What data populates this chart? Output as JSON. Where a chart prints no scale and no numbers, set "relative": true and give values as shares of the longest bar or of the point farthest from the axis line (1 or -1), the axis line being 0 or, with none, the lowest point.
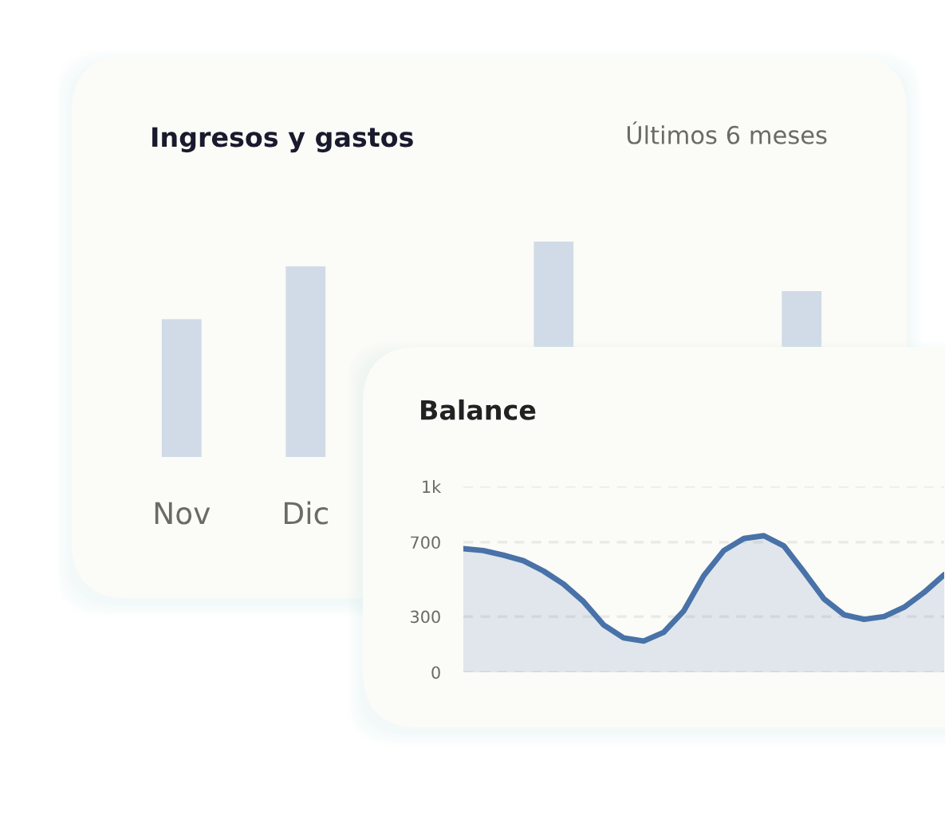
{
  "chart_data": [
    {
      "type": "bar",
      "title": "Ingresos y gastos",
      "subtitle": "Últimos 6 meses",
      "relative": true,
      "tick_labels": "x",
      "grid": false,
      "categories": [
        "Nov",
        "Dic",
        null,
        null,
        null,
        null
      ],
      "series": [
        {
          "color": "#d0dbe7",
          "values": [
            0.64,
            0.885,
            null,
            1,
            null,
            0.77
          ]
        }
      ]
    },
    {
      "type": "area",
      "title": "Balance",
      "tick_labels": "y",
      "grid": "y",
      "line_style": "solid",
      "marker": "none",
      "categories": [
        null,
        null,
        null,
        null,
        null,
        null,
        null,
        null,
        null,
        null,
        null,
        null,
        null,
        null,
        null,
        null,
        null,
        null,
        null,
        null,
        null,
        null,
        null,
        null,
        null
      ],
      "ylim": [
        0,
        1000
      ],
      "yticks": [
        0,
        300,
        700,
        {
          "value": 1000,
          "label": "1k"
        }
      ],
      "series": [
        {
          "color": "#4872a8",
          "values": [
            665,
            655,
            630,
            600,
            545,
            475,
            380,
            255,
            185,
            168,
            215,
            330,
            520,
            655,
            720,
            735,
            680,
            540,
            395,
            310,
            285,
            300,
            350,
            430,
            525
          ]
        }
      ]
    }
  ]
}
